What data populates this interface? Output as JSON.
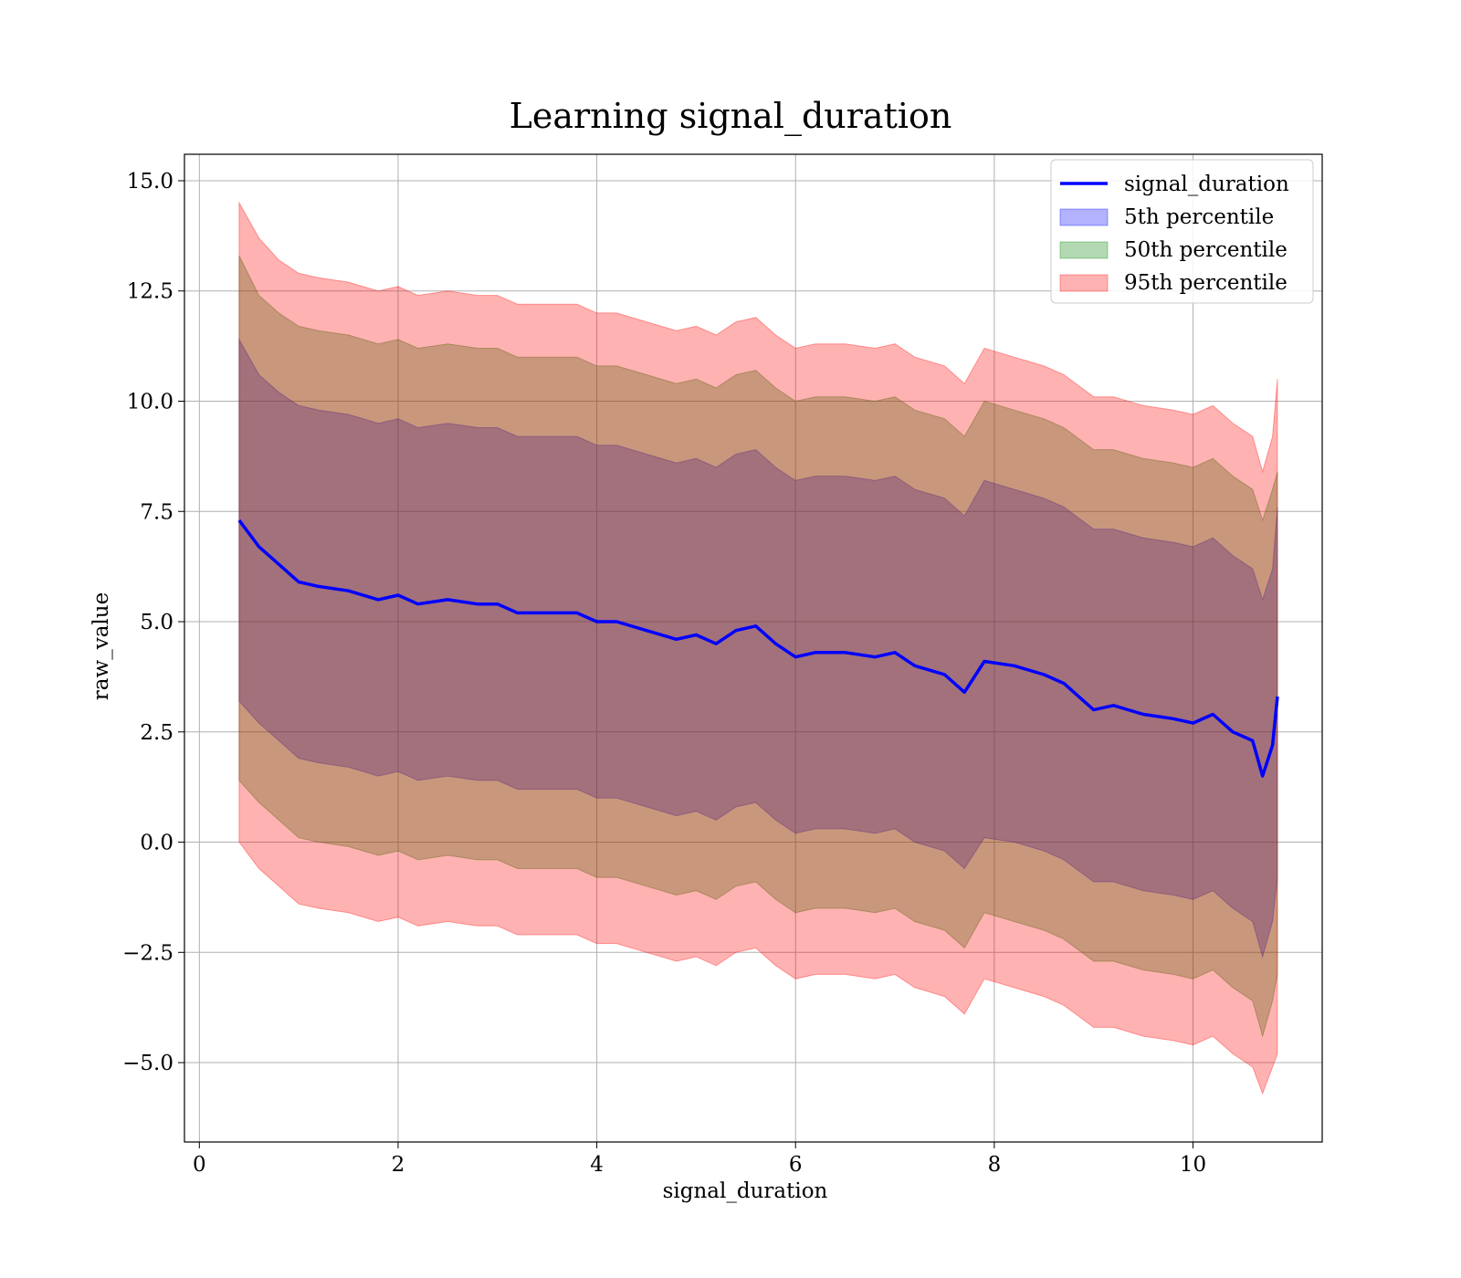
{
  "chart_data": {
    "type": "area",
    "title": "Learning signal_duration",
    "xlabel": "signal_duration",
    "ylabel": "raw_value",
    "xlim": [
      -0.15,
      11.3
    ],
    "ylim": [
      -6.8,
      15.6
    ],
    "x_ticks": [
      0,
      2,
      4,
      6,
      8,
      10
    ],
    "x_tick_labels": [
      "0",
      "2",
      "4",
      "6",
      "8",
      "10"
    ],
    "y_ticks": [
      15.0,
      12.5,
      10.0,
      7.5,
      5.0,
      2.5,
      0.0,
      -2.5,
      -5.0
    ],
    "y_tick_labels": [
      "15.0",
      "12.5",
      "10.0",
      "7.5",
      "5.0",
      "2.5",
      "0.0",
      "−2.5",
      "−5.0"
    ],
    "grid": true,
    "legend_position": "top-right",
    "x": [
      0.4,
      0.6,
      0.8,
      1.0,
      1.2,
      1.5,
      1.8,
      2.0,
      2.2,
      2.5,
      2.8,
      3.0,
      3.2,
      3.5,
      3.8,
      4.0,
      4.2,
      4.5,
      4.8,
      5.0,
      5.2,
      5.4,
      5.6,
      5.8,
      6.0,
      6.2,
      6.5,
      6.8,
      7.0,
      7.2,
      7.5,
      7.7,
      7.9,
      8.2,
      8.5,
      8.7,
      9.0,
      9.2,
      9.5,
      9.8,
      10.0,
      10.2,
      10.4,
      10.6,
      10.7,
      10.8,
      10.85
    ],
    "series": [
      {
        "name": "signal_duration",
        "color": "#0000ff",
        "style": "line",
        "values": [
          7.3,
          6.7,
          6.3,
          5.9,
          5.8,
          5.7,
          5.5,
          5.6,
          5.4,
          5.5,
          5.4,
          5.4,
          5.2,
          5.2,
          5.2,
          5.0,
          5.0,
          4.8,
          4.6,
          4.7,
          4.5,
          4.8,
          4.9,
          4.5,
          4.2,
          4.3,
          4.3,
          4.2,
          4.3,
          4.0,
          3.8,
          3.4,
          4.1,
          4.0,
          3.8,
          3.6,
          3.0,
          3.1,
          2.9,
          2.8,
          2.7,
          2.9,
          2.5,
          2.3,
          1.5,
          2.2,
          3.3
        ]
      },
      {
        "name": "5th percentile",
        "color": "#0000ff",
        "style": "band",
        "upper": [
          11.4,
          10.6,
          10.2,
          9.9,
          9.8,
          9.7,
          9.5,
          9.6,
          9.4,
          9.5,
          9.4,
          9.4,
          9.2,
          9.2,
          9.2,
          9.0,
          9.0,
          8.8,
          8.6,
          8.7,
          8.5,
          8.8,
          8.9,
          8.5,
          8.2,
          8.3,
          8.3,
          8.2,
          8.3,
          8.0,
          7.8,
          7.4,
          8.2,
          8.0,
          7.8,
          7.6,
          7.1,
          7.1,
          6.9,
          6.8,
          6.7,
          6.9,
          6.5,
          6.2,
          5.5,
          6.2,
          7.6
        ],
        "lower": [
          3.2,
          2.7,
          2.3,
          1.9,
          1.8,
          1.7,
          1.5,
          1.6,
          1.4,
          1.5,
          1.4,
          1.4,
          1.2,
          1.2,
          1.2,
          1.0,
          1.0,
          0.8,
          0.6,
          0.7,
          0.5,
          0.8,
          0.9,
          0.5,
          0.2,
          0.3,
          0.3,
          0.2,
          0.3,
          0.0,
          -0.2,
          -0.6,
          0.1,
          0.0,
          -0.2,
          -0.4,
          -0.9,
          -0.9,
          -1.1,
          -1.2,
          -1.3,
          -1.1,
          -1.5,
          -1.8,
          -2.6,
          -1.8,
          -0.8
        ]
      },
      {
        "name": "50th percentile",
        "color": "#008000",
        "style": "band",
        "upper": [
          13.3,
          12.4,
          12.0,
          11.7,
          11.6,
          11.5,
          11.3,
          11.4,
          11.2,
          11.3,
          11.2,
          11.2,
          11.0,
          11.0,
          11.0,
          10.8,
          10.8,
          10.6,
          10.4,
          10.5,
          10.3,
          10.6,
          10.7,
          10.3,
          10.0,
          10.1,
          10.1,
          10.0,
          10.1,
          9.8,
          9.6,
          9.2,
          10.0,
          9.8,
          9.6,
          9.4,
          8.9,
          8.9,
          8.7,
          8.6,
          8.5,
          8.7,
          8.3,
          8.0,
          7.3,
          8.0,
          8.4
        ],
        "lower": [
          1.4,
          0.9,
          0.5,
          0.1,
          0.0,
          -0.1,
          -0.3,
          -0.2,
          -0.4,
          -0.3,
          -0.4,
          -0.4,
          -0.6,
          -0.6,
          -0.6,
          -0.8,
          -0.8,
          -1.0,
          -1.2,
          -1.1,
          -1.3,
          -1.0,
          -0.9,
          -1.3,
          -1.6,
          -1.5,
          -1.5,
          -1.6,
          -1.5,
          -1.8,
          -2.0,
          -2.4,
          -1.6,
          -1.8,
          -2.0,
          -2.2,
          -2.7,
          -2.7,
          -2.9,
          -3.0,
          -3.1,
          -2.9,
          -3.3,
          -3.6,
          -4.4,
          -3.6,
          -3.0
        ]
      },
      {
        "name": "95th percentile",
        "color": "#ff0000",
        "style": "band",
        "upper": [
          14.5,
          13.7,
          13.2,
          12.9,
          12.8,
          12.7,
          12.5,
          12.6,
          12.4,
          12.5,
          12.4,
          12.4,
          12.2,
          12.2,
          12.2,
          12.0,
          12.0,
          11.8,
          11.6,
          11.7,
          11.5,
          11.8,
          11.9,
          11.5,
          11.2,
          11.3,
          11.3,
          11.2,
          11.3,
          11.0,
          10.8,
          10.4,
          11.2,
          11.0,
          10.8,
          10.6,
          10.1,
          10.1,
          9.9,
          9.8,
          9.7,
          9.9,
          9.5,
          9.2,
          8.4,
          9.2,
          10.5
        ],
        "lower": [
          0.0,
          -0.6,
          -1.0,
          -1.4,
          -1.5,
          -1.6,
          -1.8,
          -1.7,
          -1.9,
          -1.8,
          -1.9,
          -1.9,
          -2.1,
          -2.1,
          -2.1,
          -2.3,
          -2.3,
          -2.5,
          -2.7,
          -2.6,
          -2.8,
          -2.5,
          -2.4,
          -2.8,
          -3.1,
          -3.0,
          -3.0,
          -3.1,
          -3.0,
          -3.3,
          -3.5,
          -3.9,
          -3.1,
          -3.3,
          -3.5,
          -3.7,
          -4.2,
          -4.2,
          -4.4,
          -4.5,
          -4.6,
          -4.4,
          -4.8,
          -5.1,
          -5.7,
          -5.1,
          -4.8
        ]
      }
    ]
  }
}
